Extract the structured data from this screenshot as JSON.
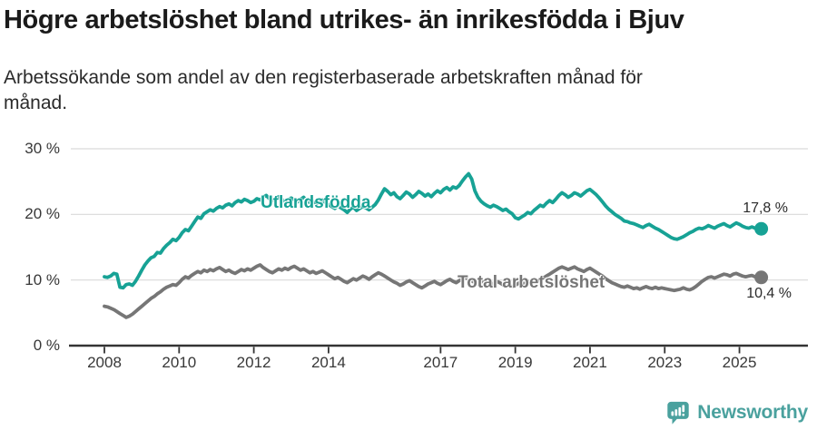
{
  "header": {
    "title": "Högre arbetslöshet bland utrikes- än inrikesfödda i Bjuv",
    "subtitle": "Arbetssökande som andel av den registerbaserade arbetskraften månad för månad.",
    "subtitle_lines": [
      "Arbetssökande som andel av den registerbaserade arbetskraften månad för",
      "månad."
    ]
  },
  "footer": {
    "brand": "Newsworthy",
    "brand_color": "#4aa19e",
    "logo_icon": "newsworthy-speech-bubble-bar-chart-icon"
  },
  "chart_data": {
    "type": "line",
    "title": "Högre arbetslöshet bland utrikes- än inrikesfödda i Bjuv",
    "subtitle": "Arbetssökande som andel av den registerbaserade arbetskraften månad för månad.",
    "unit": "%",
    "ylim": [
      0,
      30
    ],
    "grid": "horizontal",
    "grid_color": "#d9d9d9",
    "axis_color": "#333333",
    "x_start": {
      "year": 2008,
      "month": 1
    },
    "x_ticks": [
      {
        "year": 2008,
        "label": "2008"
      },
      {
        "year": 2010,
        "label": "2010"
      },
      {
        "year": 2012,
        "label": "2012"
      },
      {
        "year": 2014,
        "label": "2014"
      },
      {
        "year": 2017,
        "label": "2017"
      },
      {
        "year": 2019,
        "label": "2019"
      },
      {
        "year": 2021,
        "label": "2021"
      },
      {
        "year": 2023,
        "label": "2023"
      },
      {
        "year": 2025,
        "label": "2025"
      }
    ],
    "y_ticks": [
      {
        "value": 0,
        "label": "0 %"
      },
      {
        "value": 10,
        "label": "10 %"
      },
      {
        "value": 20,
        "label": "20 %"
      },
      {
        "value": 30,
        "label": "30 %"
      }
    ],
    "series": [
      {
        "name": "Utlandsfödda",
        "color": "#17a295",
        "end_label": "17,8 %",
        "end_value": 17.8,
        "values": [
          10.5,
          10.4,
          10.6,
          11.0,
          10.9,
          8.9,
          8.8,
          9.3,
          9.4,
          9.2,
          9.8,
          10.6,
          11.5,
          12.3,
          12.9,
          13.4,
          13.6,
          14.2,
          14.1,
          14.8,
          15.3,
          15.7,
          16.2,
          16.0,
          16.5,
          17.2,
          17.7,
          17.5,
          18.2,
          18.9,
          19.6,
          19.4,
          20.1,
          20.4,
          20.7,
          20.5,
          20.9,
          21.2,
          21.0,
          21.4,
          21.6,
          21.3,
          21.8,
          22.1,
          21.9,
          22.3,
          22.1,
          21.8,
          22.0,
          22.4,
          22.2,
          22.6,
          22.9,
          22.4,
          22.1,
          22.4,
          22.7,
          22.3,
          21.9,
          22.2,
          22.5,
          22.2,
          21.9,
          22.3,
          22.6,
          22.1,
          21.8,
          22.0,
          21.6,
          21.9,
          22.2,
          21.8,
          21.5,
          21.2,
          20.9,
          21.3,
          21.0,
          20.7,
          20.3,
          20.8,
          21.1,
          20.6,
          20.9,
          21.2,
          21.0,
          20.7,
          21.1,
          21.5,
          22.2,
          23.1,
          23.9,
          23.5,
          23.0,
          23.3,
          22.7,
          22.4,
          22.9,
          23.4,
          23.1,
          22.6,
          23.0,
          23.5,
          23.2,
          22.8,
          23.1,
          22.7,
          23.2,
          23.6,
          23.3,
          23.8,
          24.1,
          23.7,
          24.2,
          24.0,
          24.4,
          25.1,
          25.7,
          26.2,
          25.4,
          23.6,
          22.6,
          22.0,
          21.6,
          21.3,
          21.1,
          21.4,
          21.2,
          20.9,
          20.6,
          20.8,
          20.4,
          20.1,
          19.5,
          19.3,
          19.6,
          19.9,
          20.3,
          20.1,
          20.6,
          21.0,
          21.4,
          21.2,
          21.7,
          22.1,
          21.8,
          22.3,
          22.9,
          23.3,
          23.0,
          22.6,
          22.9,
          23.3,
          23.1,
          22.8,
          23.2,
          23.6,
          23.8,
          23.4,
          23.0,
          22.5,
          21.9,
          21.3,
          20.8,
          20.4,
          20.0,
          19.7,
          19.4,
          19.0,
          18.9,
          18.7,
          18.6,
          18.4,
          18.2,
          18.0,
          18.3,
          18.5,
          18.2,
          17.9,
          17.7,
          17.4,
          17.1,
          16.8,
          16.5,
          16.3,
          16.2,
          16.4,
          16.6,
          16.9,
          17.2,
          17.4,
          17.7,
          17.9,
          17.8,
          18.0,
          18.3,
          18.1,
          17.9,
          18.2,
          18.4,
          18.6,
          18.3,
          18.1,
          18.4,
          18.7,
          18.5,
          18.2,
          18.0,
          17.9,
          18.1,
          17.9,
          17.7,
          17.8
        ]
      },
      {
        "name": "Total arbetslöshet",
        "color": "#767676",
        "end_label": "10,4 %",
        "end_value": 10.4,
        "values": [
          6.0,
          5.9,
          5.7,
          5.5,
          5.2,
          4.9,
          4.6,
          4.3,
          4.5,
          4.8,
          5.2,
          5.6,
          6.0,
          6.4,
          6.8,
          7.2,
          7.5,
          7.9,
          8.2,
          8.6,
          8.9,
          9.1,
          9.3,
          9.2,
          9.6,
          10.1,
          10.5,
          10.3,
          10.7,
          11.0,
          11.3,
          11.1,
          11.5,
          11.3,
          11.6,
          11.4,
          11.7,
          11.9,
          11.6,
          11.3,
          11.5,
          11.2,
          11.0,
          11.3,
          11.6,
          11.4,
          11.7,
          11.5,
          11.8,
          12.1,
          12.3,
          11.9,
          11.6,
          11.3,
          11.1,
          11.4,
          11.7,
          11.5,
          11.8,
          11.6,
          11.9,
          12.1,
          11.8,
          11.5,
          11.7,
          11.4,
          11.1,
          11.3,
          11.0,
          11.2,
          11.4,
          11.1,
          10.8,
          10.5,
          10.2,
          10.4,
          10.1,
          9.8,
          9.6,
          9.9,
          10.2,
          10.0,
          10.3,
          10.6,
          10.4,
          10.1,
          10.5,
          10.8,
          11.1,
          10.9,
          10.6,
          10.3,
          10.0,
          9.7,
          9.5,
          9.2,
          9.4,
          9.7,
          9.9,
          9.6,
          9.3,
          9.0,
          8.8,
          9.1,
          9.4,
          9.6,
          9.8,
          9.5,
          9.3,
          9.6,
          9.9,
          10.1,
          9.8,
          9.6,
          9.9,
          10.2,
          10.4,
          10.1,
          9.9,
          9.6,
          9.4,
          9.7,
          9.9,
          9.6,
          9.3,
          9.5,
          9.8,
          9.6,
          9.3,
          9.5,
          9.2,
          9.0,
          9.2,
          9.5,
          9.7,
          9.4,
          9.6,
          9.9,
          10.1,
          9.8,
          10.0,
          10.3,
          10.6,
          10.9,
          11.2,
          11.5,
          11.8,
          12.0,
          11.8,
          11.6,
          11.8,
          12.0,
          11.7,
          11.5,
          11.3,
          11.6,
          11.8,
          11.5,
          11.2,
          10.9,
          10.6,
          10.2,
          9.9,
          9.6,
          9.4,
          9.2,
          9.0,
          8.9,
          9.1,
          8.9,
          8.7,
          8.8,
          8.6,
          8.8,
          9.0,
          8.8,
          8.7,
          8.9,
          8.7,
          8.8,
          8.7,
          8.6,
          8.5,
          8.4,
          8.5,
          8.6,
          8.8,
          8.6,
          8.5,
          8.7,
          9.0,
          9.4,
          9.8,
          10.1,
          10.4,
          10.5,
          10.3,
          10.5,
          10.7,
          10.9,
          10.8,
          10.6,
          10.9,
          11.0,
          10.8,
          10.6,
          10.5,
          10.6,
          10.7,
          10.5,
          10.3,
          10.4
        ]
      }
    ]
  }
}
